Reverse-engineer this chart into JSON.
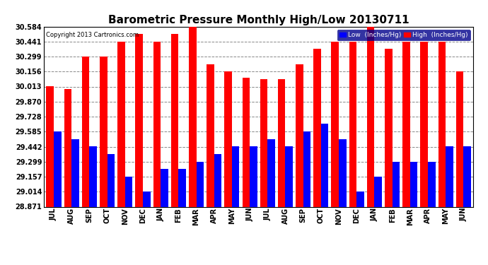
{
  "title": "Barometric Pressure Monthly High/Low 20130711",
  "copyright": "Copyright 2013 Cartronics.com",
  "categories": [
    "JUL",
    "AUG",
    "SEP",
    "OCT",
    "NOV",
    "DEC",
    "JAN",
    "FEB",
    "MAR",
    "APR",
    "MAY",
    "JUN",
    "JUL",
    "AUG",
    "SEP",
    "OCT",
    "NOV",
    "DEC",
    "JAN",
    "FEB",
    "MAR",
    "APR",
    "MAY",
    "JUN"
  ],
  "high_values": [
    30.013,
    29.987,
    30.299,
    30.299,
    30.441,
    30.513,
    30.441,
    30.513,
    30.584,
    30.227,
    30.156,
    30.1,
    30.085,
    30.085,
    30.227,
    30.37,
    30.441,
    30.441,
    30.584,
    30.37,
    30.441,
    30.441,
    30.441,
    30.156
  ],
  "low_values": [
    29.585,
    29.514,
    29.442,
    29.371,
    29.157,
    29.014,
    29.229,
    29.228,
    29.3,
    29.371,
    29.442,
    29.442,
    29.514,
    29.442,
    29.585,
    29.657,
    29.514,
    29.014,
    29.157,
    29.3,
    29.3,
    29.299,
    29.442,
    29.442
  ],
  "yticks": [
    28.871,
    29.014,
    29.157,
    29.299,
    29.442,
    29.585,
    29.728,
    29.87,
    30.013,
    30.156,
    30.299,
    30.441,
    30.584
  ],
  "ymin": 28.871,
  "ymax": 30.584,
  "high_color": "#ff0000",
  "low_color": "#0000ff",
  "bg_color": "#ffffff",
  "grid_color": "#888888",
  "title_fontsize": 11,
  "copyright_fontsize": 6,
  "tick_fontsize": 7,
  "legend_low_label": "Low  (Inches/Hg)",
  "legend_high_label": "High  (Inches/Hg)"
}
